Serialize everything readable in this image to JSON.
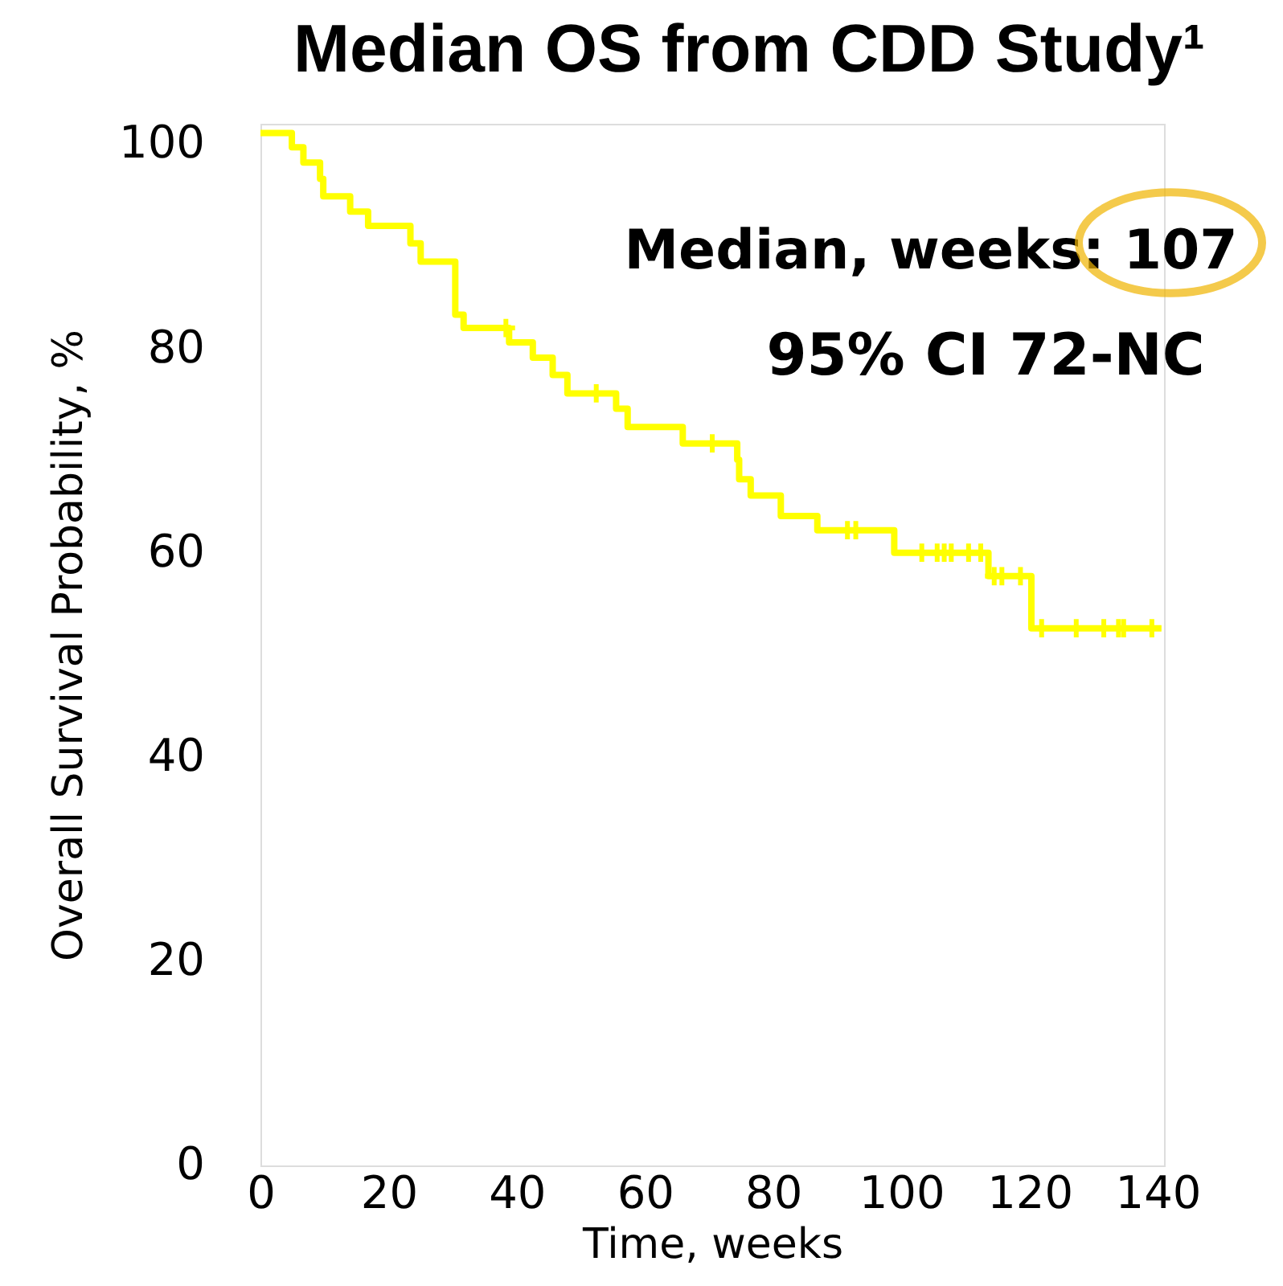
{
  "chart_data": {
    "type": "step",
    "title": "Median OS from CDD Study¹",
    "xlabel": "Time, weeks",
    "ylabel": "Overall Survival Probability, %",
    "annotations": [
      "Median, weeks: 107",
      "95% CI 72-NC"
    ],
    "xlim": [
      0,
      141
    ],
    "xticks": [
      0,
      20,
      40,
      60,
      80,
      100,
      120,
      140
    ],
    "ylim": [
      0,
      102
    ],
    "yticks": [
      0,
      20,
      40,
      60,
      80,
      100
    ],
    "grid": false,
    "legend": false,
    "line_style": "solid",
    "series": [
      {
        "color": "#ffff00",
        "x": [
          0,
          4.9,
          6.7,
          9.3,
          9.8,
          14.0,
          16.8,
          23.4,
          25.0,
          30.4,
          31.7,
          38.8,
          42.5,
          45.6,
          47.9,
          55.5,
          57.3,
          65.9,
          74.4,
          74.7,
          76.5,
          81.2,
          86.9,
          98.9,
          113.6,
          120.3,
          140.6
        ],
        "values": [
          101.1,
          99.7,
          98.2,
          96.6,
          94.9,
          93.4,
          92.0,
          90.3,
          88.5,
          83.3,
          82.0,
          80.6,
          79.1,
          77.4,
          75.6,
          74.1,
          72.3,
          70.7,
          69.1,
          67.2,
          65.6,
          63.6,
          62.2,
          60.0,
          57.7,
          52.6,
          52.6
        ]
      },
      {
        "type": "scatter",
        "marker": "cross",
        "color": "#ffff00",
        "x": [
          38.3,
          52.4,
          70.5,
          91.6,
          92.9,
          103.2,
          105.6,
          106.7,
          107.8,
          110.5,
          112.4,
          114.5,
          115.7,
          118.6,
          121.9,
          127.3,
          131.6,
          133.9,
          134.7,
          139.1
        ],
        "values": [
          82.0,
          75.6,
          70.7,
          62.2,
          62.2,
          60.0,
          60.0,
          60.0,
          60.0,
          60.0,
          60.0,
          57.7,
          57.7,
          57.7,
          52.6,
          52.6,
          52.6,
          52.6,
          52.6,
          52.6
        ]
      }
    ]
  }
}
